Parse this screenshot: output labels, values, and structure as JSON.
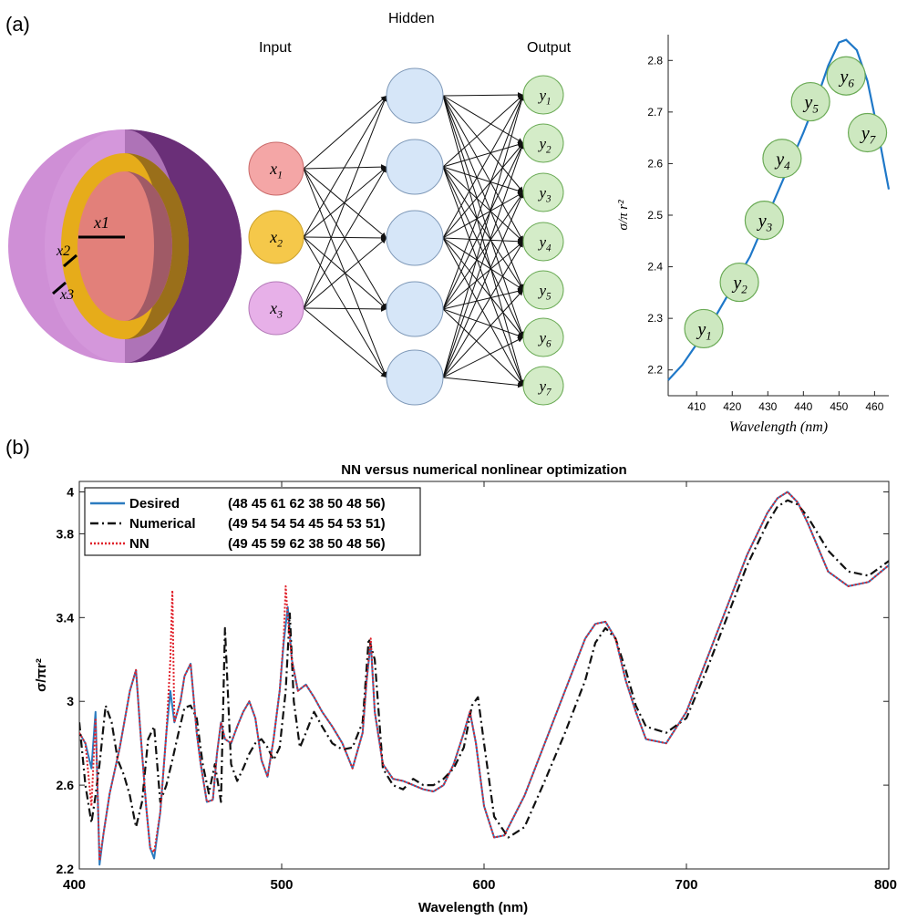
{
  "panel_a": {
    "label": "(a)",
    "sphere_labels": [
      "x1",
      "x2",
      "x3"
    ],
    "network": {
      "layer_titles": {
        "input": "Input",
        "hidden": "Hidden",
        "output": "Output"
      },
      "input_nodes": [
        "x1",
        "x2",
        "x3"
      ],
      "hidden_count": 5,
      "output_nodes": [
        "y1",
        "y2",
        "y3",
        "y4",
        "y5",
        "y6",
        "y7"
      ],
      "colors": {
        "x1": "#f4a6a6",
        "x2": "#f5c84a",
        "x3": "#e7b0e8",
        "hidden": "#d6e6f8",
        "output": "#d4ecc8"
      }
    },
    "chart_data": {
      "type": "line",
      "xlabel": "Wavelength (nm)",
      "ylabel": "σ/π r²",
      "xlim": [
        402,
        464
      ],
      "ylim": [
        2.15,
        2.85
      ],
      "xticks": [
        410,
        420,
        430,
        440,
        450,
        460
      ],
      "yticks": [
        2.2,
        2.3,
        2.4,
        2.5,
        2.6,
        2.7,
        2.8
      ],
      "curve": {
        "x": [
          402,
          406,
          410,
          415,
          420,
          425,
          430,
          435,
          440,
          444,
          447,
          450,
          452,
          455,
          458,
          461,
          464
        ],
        "y": [
          2.18,
          2.21,
          2.25,
          2.3,
          2.36,
          2.42,
          2.5,
          2.58,
          2.66,
          2.73,
          2.79,
          2.835,
          2.84,
          2.82,
          2.76,
          2.66,
          2.55
        ]
      },
      "markers": [
        {
          "label": "y1",
          "x": 412,
          "y": 2.28
        },
        {
          "label": "y2",
          "x": 422,
          "y": 2.37
        },
        {
          "label": "y3",
          "x": 429,
          "y": 2.49
        },
        {
          "label": "y4",
          "x": 434,
          "y": 2.61
        },
        {
          "label": "y5",
          "x": 442,
          "y": 2.72
        },
        {
          "label": "y6",
          "x": 452,
          "y": 2.77
        },
        {
          "label": "y7",
          "x": 458,
          "y": 2.66
        }
      ],
      "colors": {
        "line": "#1f78c8",
        "marker_fill": "#cde8c0",
        "marker_stroke": "#6aaa55"
      }
    }
  },
  "panel_b": {
    "label": "(b)",
    "chart_data": {
      "type": "line",
      "title": "NN versus numerical nonlinear optimization",
      "xlabel": "Wavelength (nm)",
      "ylabel": "σ/πr²",
      "xlim": [
        400,
        800
      ],
      "ylim": [
        2.2,
        4.05
      ],
      "xticks": [
        400,
        500,
        600,
        700,
        800
      ],
      "yticks": [
        2.2,
        2.6,
        3,
        3.4,
        3.8,
        4
      ],
      "legend_position": "top-left",
      "series": [
        {
          "name": "Desired",
          "values_label": "(48 45 61 62 38 50 48 56)",
          "style": "solid",
          "color": "#2b7bbf",
          "x": [
            400,
            403,
            406,
            408,
            410,
            412,
            415,
            420,
            425,
            428,
            430,
            433,
            435,
            437,
            440,
            443,
            445,
            447,
            450,
            452,
            455,
            458,
            460,
            463,
            466,
            468,
            470,
            472,
            475,
            478,
            481,
            484,
            487,
            490,
            493,
            496,
            499,
            501,
            503,
            505,
            508,
            512,
            516,
            520,
            525,
            530,
            535,
            540,
            542,
            544,
            546,
            550,
            555,
            560,
            565,
            570,
            575,
            580,
            585,
            590,
            593,
            596,
            600,
            605,
            610,
            620,
            630,
            640,
            650,
            655,
            660,
            665,
            670,
            675,
            680,
            690,
            700,
            710,
            720,
            730,
            740,
            745,
            750,
            755,
            760,
            770,
            780,
            790,
            800
          ],
          "y": [
            2.85,
            2.8,
            2.68,
            2.95,
            2.22,
            2.37,
            2.56,
            2.78,
            3.05,
            3.15,
            2.88,
            2.5,
            2.3,
            2.25,
            2.47,
            2.85,
            3.05,
            2.9,
            3.0,
            3.12,
            3.18,
            2.85,
            2.7,
            2.52,
            2.53,
            2.75,
            2.9,
            2.82,
            2.8,
            2.88,
            2.95,
            3.0,
            2.92,
            2.72,
            2.64,
            2.82,
            3.05,
            3.28,
            3.45,
            3.2,
            3.05,
            3.08,
            3.02,
            2.95,
            2.88,
            2.8,
            2.68,
            2.85,
            3.1,
            3.28,
            2.95,
            2.7,
            2.63,
            2.62,
            2.6,
            2.58,
            2.57,
            2.6,
            2.7,
            2.85,
            2.95,
            2.8,
            2.5,
            2.35,
            2.36,
            2.55,
            2.8,
            3.05,
            3.3,
            3.37,
            3.38,
            3.3,
            3.1,
            2.95,
            2.82,
            2.8,
            2.95,
            3.2,
            3.45,
            3.7,
            3.9,
            3.97,
            4.0,
            3.95,
            3.85,
            3.62,
            3.55,
            3.57,
            3.65
          ]
        },
        {
          "name": "Numerical",
          "values_label": "(49 54 54 54 45 54 53 51)",
          "style": "dashdot",
          "color": "#111111",
          "x": [
            400,
            403,
            406,
            408,
            410,
            413,
            416,
            419,
            422,
            425,
            428,
            431,
            434,
            437,
            440,
            443,
            446,
            449,
            452,
            455,
            458,
            461,
            464,
            467,
            470,
            472,
            475,
            478,
            481,
            484,
            487,
            490,
            493,
            496,
            499,
            502,
            504,
            506,
            509,
            512,
            516,
            520,
            525,
            530,
            535,
            540,
            543,
            546,
            550,
            555,
            560,
            565,
            570,
            575,
            580,
            585,
            590,
            594,
            597,
            600,
            605,
            612,
            620,
            630,
            640,
            650,
            655,
            660,
            665,
            670,
            675,
            680,
            690,
            700,
            710,
            720,
            730,
            740,
            745,
            750,
            755,
            760,
            770,
            780,
            790,
            800
          ],
          "y": [
            2.9,
            2.6,
            2.42,
            2.55,
            2.7,
            2.98,
            2.9,
            2.72,
            2.65,
            2.55,
            2.4,
            2.52,
            2.82,
            2.88,
            2.52,
            2.6,
            2.72,
            2.85,
            2.97,
            2.98,
            2.92,
            2.7,
            2.56,
            2.7,
            2.52,
            3.35,
            2.7,
            2.62,
            2.68,
            2.75,
            2.8,
            2.82,
            2.78,
            2.72,
            2.78,
            3.05,
            3.42,
            3.0,
            2.78,
            2.85,
            2.95,
            2.88,
            2.8,
            2.77,
            2.78,
            2.9,
            3.3,
            3.2,
            2.68,
            2.6,
            2.58,
            2.63,
            2.6,
            2.6,
            2.63,
            2.68,
            2.78,
            2.98,
            3.02,
            2.8,
            2.45,
            2.35,
            2.4,
            2.62,
            2.85,
            3.1,
            3.28,
            3.35,
            3.3,
            3.15,
            2.98,
            2.88,
            2.85,
            2.92,
            3.15,
            3.4,
            3.65,
            3.85,
            3.93,
            3.96,
            3.94,
            3.88,
            3.72,
            3.62,
            3.6,
            3.67
          ]
        },
        {
          "name": "NN",
          "values_label": "(49 45 59 62 38 50 48 56)",
          "style": "dotted",
          "color": "#e0202a",
          "x": [
            400,
            403,
            406,
            408,
            410,
            412,
            415,
            420,
            425,
            428,
            430,
            433,
            435,
            437,
            440,
            443,
            445,
            446,
            447,
            450,
            452,
            455,
            458,
            460,
            463,
            466,
            468,
            470,
            472,
            475,
            478,
            481,
            484,
            487,
            490,
            493,
            496,
            499,
            501,
            502,
            503,
            505,
            508,
            512,
            516,
            520,
            525,
            530,
            535,
            540,
            542,
            544,
            546,
            550,
            555,
            560,
            565,
            570,
            575,
            580,
            585,
            590,
            593,
            596,
            600,
            605,
            610,
            620,
            630,
            640,
            650,
            655,
            660,
            665,
            670,
            675,
            680,
            690,
            700,
            710,
            720,
            730,
            740,
            745,
            750,
            755,
            760,
            770,
            780,
            790,
            800
          ],
          "y": [
            2.85,
            2.8,
            2.5,
            2.92,
            2.24,
            2.37,
            2.56,
            2.78,
            3.05,
            3.15,
            2.88,
            2.5,
            2.3,
            2.28,
            2.47,
            2.85,
            3.2,
            3.53,
            2.9,
            3.0,
            3.12,
            3.18,
            2.85,
            2.7,
            2.52,
            2.53,
            2.75,
            2.9,
            2.82,
            2.8,
            2.88,
            2.95,
            3.0,
            2.92,
            2.72,
            2.64,
            2.82,
            3.05,
            3.3,
            3.55,
            3.4,
            3.2,
            3.05,
            3.08,
            3.02,
            2.95,
            2.88,
            2.8,
            2.68,
            2.85,
            3.1,
            3.3,
            2.95,
            2.7,
            2.63,
            2.62,
            2.6,
            2.58,
            2.57,
            2.6,
            2.7,
            2.85,
            2.95,
            2.8,
            2.5,
            2.35,
            2.36,
            2.55,
            2.8,
            3.05,
            3.3,
            3.37,
            3.38,
            3.3,
            3.1,
            2.95,
            2.82,
            2.8,
            2.95,
            3.2,
            3.45,
            3.7,
            3.9,
            3.97,
            4.0,
            3.95,
            3.85,
            3.62,
            3.55,
            3.57,
            3.65
          ]
        }
      ]
    }
  }
}
